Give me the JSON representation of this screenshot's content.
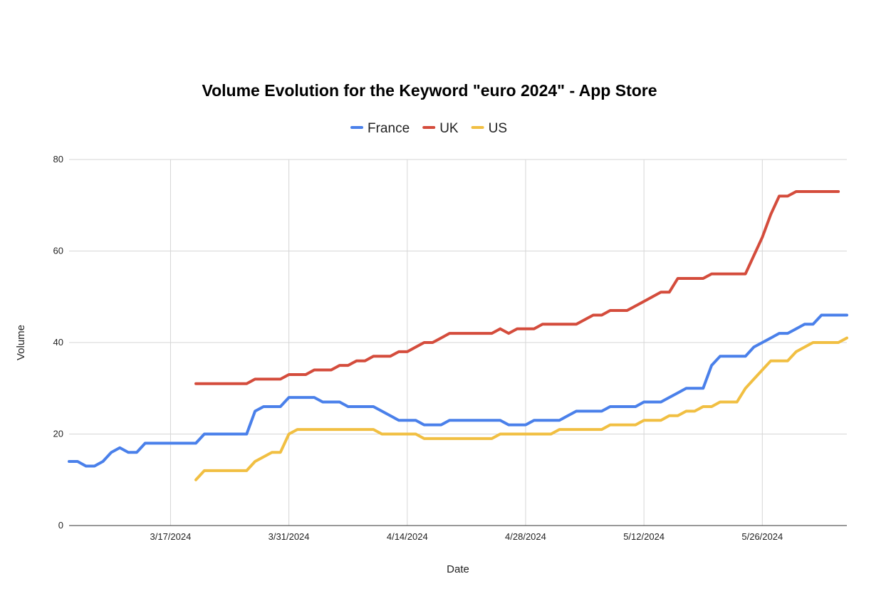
{
  "chart_data": {
    "type": "line",
    "title": "Volume Evolution for the Keyword \"euro 2024\" - App Store",
    "xlabel": "Date",
    "ylabel": "Volume",
    "ylim": [
      0,
      80
    ],
    "yticks": [
      0,
      20,
      40,
      60,
      80
    ],
    "xlim": [
      "2024-03-05",
      "2024-06-05"
    ],
    "xticks": [
      {
        "date": "2024-03-17",
        "label": "3/17/2024"
      },
      {
        "date": "2024-03-31",
        "label": "3/31/2024"
      },
      {
        "date": "2024-04-14",
        "label": "4/14/2024"
      },
      {
        "date": "2024-04-28",
        "label": "4/28/2024"
      },
      {
        "date": "2024-05-12",
        "label": "5/12/2024"
      },
      {
        "date": "2024-05-26",
        "label": "5/26/2024"
      }
    ],
    "grid": true,
    "legend_position": "top",
    "series": [
      {
        "name": "France",
        "color": "#4a80ea",
        "points": [
          [
            "2024-03-05",
            14
          ],
          [
            "2024-03-06",
            14
          ],
          [
            "2024-03-07",
            13
          ],
          [
            "2024-03-08",
            13
          ],
          [
            "2024-03-09",
            14
          ],
          [
            "2024-03-10",
            16
          ],
          [
            "2024-03-11",
            17
          ],
          [
            "2024-03-12",
            16
          ],
          [
            "2024-03-13",
            16
          ],
          [
            "2024-03-14",
            18
          ],
          [
            "2024-03-15",
            18
          ],
          [
            "2024-03-16",
            18
          ],
          [
            "2024-03-17",
            18
          ],
          [
            "2024-03-18",
            18
          ],
          [
            "2024-03-19",
            18
          ],
          [
            "2024-03-20",
            18
          ],
          [
            "2024-03-21",
            20
          ],
          [
            "2024-03-22",
            20
          ],
          [
            "2024-03-23",
            20
          ],
          [
            "2024-03-24",
            20
          ],
          [
            "2024-03-25",
            20
          ],
          [
            "2024-03-26",
            20
          ],
          [
            "2024-03-27",
            25
          ],
          [
            "2024-03-28",
            26
          ],
          [
            "2024-03-29",
            26
          ],
          [
            "2024-03-30",
            26
          ],
          [
            "2024-03-31",
            28
          ],
          [
            "2024-04-01",
            28
          ],
          [
            "2024-04-02",
            28
          ],
          [
            "2024-04-03",
            28
          ],
          [
            "2024-04-04",
            27
          ],
          [
            "2024-04-05",
            27
          ],
          [
            "2024-04-06",
            27
          ],
          [
            "2024-04-07",
            26
          ],
          [
            "2024-04-08",
            26
          ],
          [
            "2024-04-09",
            26
          ],
          [
            "2024-04-10",
            26
          ],
          [
            "2024-04-11",
            25
          ],
          [
            "2024-04-12",
            24
          ],
          [
            "2024-04-13",
            23
          ],
          [
            "2024-04-14",
            23
          ],
          [
            "2024-04-15",
            23
          ],
          [
            "2024-04-16",
            22
          ],
          [
            "2024-04-17",
            22
          ],
          [
            "2024-04-18",
            22
          ],
          [
            "2024-04-19",
            23
          ],
          [
            "2024-04-20",
            23
          ],
          [
            "2024-04-21",
            23
          ],
          [
            "2024-04-22",
            23
          ],
          [
            "2024-04-23",
            23
          ],
          [
            "2024-04-24",
            23
          ],
          [
            "2024-04-25",
            23
          ],
          [
            "2024-04-26",
            22
          ],
          [
            "2024-04-27",
            22
          ],
          [
            "2024-04-28",
            22
          ],
          [
            "2024-04-29",
            23
          ],
          [
            "2024-04-30",
            23
          ],
          [
            "2024-05-01",
            23
          ],
          [
            "2024-05-02",
            23
          ],
          [
            "2024-05-03",
            24
          ],
          [
            "2024-05-04",
            25
          ],
          [
            "2024-05-05",
            25
          ],
          [
            "2024-05-06",
            25
          ],
          [
            "2024-05-07",
            25
          ],
          [
            "2024-05-08",
            26
          ],
          [
            "2024-05-09",
            26
          ],
          [
            "2024-05-10",
            26
          ],
          [
            "2024-05-11",
            26
          ],
          [
            "2024-05-12",
            27
          ],
          [
            "2024-05-13",
            27
          ],
          [
            "2024-05-14",
            27
          ],
          [
            "2024-05-15",
            28
          ],
          [
            "2024-05-16",
            29
          ],
          [
            "2024-05-17",
            30
          ],
          [
            "2024-05-18",
            30
          ],
          [
            "2024-05-19",
            30
          ],
          [
            "2024-05-20",
            35
          ],
          [
            "2024-05-21",
            37
          ],
          [
            "2024-05-22",
            37
          ],
          [
            "2024-05-23",
            37
          ],
          [
            "2024-05-24",
            37
          ],
          [
            "2024-05-25",
            39
          ],
          [
            "2024-05-26",
            40
          ],
          [
            "2024-05-27",
            41
          ],
          [
            "2024-05-28",
            42
          ],
          [
            "2024-05-29",
            42
          ],
          [
            "2024-05-30",
            43
          ],
          [
            "2024-05-31",
            44
          ],
          [
            "2024-06-01",
            44
          ],
          [
            "2024-06-02",
            46
          ],
          [
            "2024-06-03",
            46
          ],
          [
            "2024-06-04",
            46
          ],
          [
            "2024-06-05",
            46
          ]
        ]
      },
      {
        "name": "UK",
        "color": "#d44c3c",
        "points": [
          [
            "2024-03-20",
            31
          ],
          [
            "2024-03-21",
            31
          ],
          [
            "2024-03-22",
            31
          ],
          [
            "2024-03-23",
            31
          ],
          [
            "2024-03-24",
            31
          ],
          [
            "2024-03-25",
            31
          ],
          [
            "2024-03-26",
            31
          ],
          [
            "2024-03-27",
            32
          ],
          [
            "2024-03-28",
            32
          ],
          [
            "2024-03-29",
            32
          ],
          [
            "2024-03-30",
            32
          ],
          [
            "2024-03-31",
            33
          ],
          [
            "2024-04-01",
            33
          ],
          [
            "2024-04-02",
            33
          ],
          [
            "2024-04-03",
            34
          ],
          [
            "2024-04-04",
            34
          ],
          [
            "2024-04-05",
            34
          ],
          [
            "2024-04-06",
            35
          ],
          [
            "2024-04-07",
            35
          ],
          [
            "2024-04-08",
            36
          ],
          [
            "2024-04-09",
            36
          ],
          [
            "2024-04-10",
            37
          ],
          [
            "2024-04-11",
            37
          ],
          [
            "2024-04-12",
            37
          ],
          [
            "2024-04-13",
            38
          ],
          [
            "2024-04-14",
            38
          ],
          [
            "2024-04-15",
            39
          ],
          [
            "2024-04-16",
            40
          ],
          [
            "2024-04-17",
            40
          ],
          [
            "2024-04-18",
            41
          ],
          [
            "2024-04-19",
            42
          ],
          [
            "2024-04-20",
            42
          ],
          [
            "2024-04-21",
            42
          ],
          [
            "2024-04-22",
            42
          ],
          [
            "2024-04-23",
            42
          ],
          [
            "2024-04-24",
            42
          ],
          [
            "2024-04-25",
            43
          ],
          [
            "2024-04-26",
            42
          ],
          [
            "2024-04-27",
            43
          ],
          [
            "2024-04-28",
            43
          ],
          [
            "2024-04-29",
            43
          ],
          [
            "2024-04-30",
            44
          ],
          [
            "2024-05-01",
            44
          ],
          [
            "2024-05-02",
            44
          ],
          [
            "2024-05-03",
            44
          ],
          [
            "2024-05-04",
            44
          ],
          [
            "2024-05-05",
            45
          ],
          [
            "2024-05-06",
            46
          ],
          [
            "2024-05-07",
            46
          ],
          [
            "2024-05-08",
            47
          ],
          [
            "2024-05-09",
            47
          ],
          [
            "2024-05-10",
            47
          ],
          [
            "2024-05-11",
            48
          ],
          [
            "2024-05-12",
            49
          ],
          [
            "2024-05-13",
            50
          ],
          [
            "2024-05-14",
            51
          ],
          [
            "2024-05-15",
            51
          ],
          [
            "2024-05-16",
            54
          ],
          [
            "2024-05-17",
            54
          ],
          [
            "2024-05-18",
            54
          ],
          [
            "2024-05-19",
            54
          ],
          [
            "2024-05-20",
            55
          ],
          [
            "2024-05-21",
            55
          ],
          [
            "2024-05-22",
            55
          ],
          [
            "2024-05-23",
            55
          ],
          [
            "2024-05-24",
            55
          ],
          [
            "2024-05-25",
            59
          ],
          [
            "2024-05-26",
            63
          ],
          [
            "2024-05-27",
            68
          ],
          [
            "2024-05-28",
            72
          ],
          [
            "2024-05-29",
            72
          ],
          [
            "2024-05-30",
            73
          ],
          [
            "2024-05-31",
            73
          ],
          [
            "2024-06-01",
            73
          ],
          [
            "2024-06-02",
            73
          ],
          [
            "2024-06-03",
            73
          ],
          [
            "2024-06-04",
            73
          ]
        ]
      },
      {
        "name": "US",
        "color": "#f1bf42",
        "points": [
          [
            "2024-03-20",
            10
          ],
          [
            "2024-03-21",
            12
          ],
          [
            "2024-03-22",
            12
          ],
          [
            "2024-03-23",
            12
          ],
          [
            "2024-03-24",
            12
          ],
          [
            "2024-03-25",
            12
          ],
          [
            "2024-03-26",
            12
          ],
          [
            "2024-03-27",
            14
          ],
          [
            "2024-03-28",
            15
          ],
          [
            "2024-03-29",
            16
          ],
          [
            "2024-03-30",
            16
          ],
          [
            "2024-03-31",
            20
          ],
          [
            "2024-04-01",
            21
          ],
          [
            "2024-04-02",
            21
          ],
          [
            "2024-04-03",
            21
          ],
          [
            "2024-04-04",
            21
          ],
          [
            "2024-04-05",
            21
          ],
          [
            "2024-04-06",
            21
          ],
          [
            "2024-04-07",
            21
          ],
          [
            "2024-04-08",
            21
          ],
          [
            "2024-04-09",
            21
          ],
          [
            "2024-04-10",
            21
          ],
          [
            "2024-04-11",
            20
          ],
          [
            "2024-04-12",
            20
          ],
          [
            "2024-04-13",
            20
          ],
          [
            "2024-04-14",
            20
          ],
          [
            "2024-04-15",
            20
          ],
          [
            "2024-04-16",
            19
          ],
          [
            "2024-04-17",
            19
          ],
          [
            "2024-04-18",
            19
          ],
          [
            "2024-04-19",
            19
          ],
          [
            "2024-04-20",
            19
          ],
          [
            "2024-04-21",
            19
          ],
          [
            "2024-04-22",
            19
          ],
          [
            "2024-04-23",
            19
          ],
          [
            "2024-04-24",
            19
          ],
          [
            "2024-04-25",
            20
          ],
          [
            "2024-04-26",
            20
          ],
          [
            "2024-04-27",
            20
          ],
          [
            "2024-04-28",
            20
          ],
          [
            "2024-04-29",
            20
          ],
          [
            "2024-04-30",
            20
          ],
          [
            "2024-05-01",
            20
          ],
          [
            "2024-05-02",
            21
          ],
          [
            "2024-05-03",
            21
          ],
          [
            "2024-05-04",
            21
          ],
          [
            "2024-05-05",
            21
          ],
          [
            "2024-05-06",
            21
          ],
          [
            "2024-05-07",
            21
          ],
          [
            "2024-05-08",
            22
          ],
          [
            "2024-05-09",
            22
          ],
          [
            "2024-05-10",
            22
          ],
          [
            "2024-05-11",
            22
          ],
          [
            "2024-05-12",
            23
          ],
          [
            "2024-05-13",
            23
          ],
          [
            "2024-05-14",
            23
          ],
          [
            "2024-05-15",
            24
          ],
          [
            "2024-05-16",
            24
          ],
          [
            "2024-05-17",
            25
          ],
          [
            "2024-05-18",
            25
          ],
          [
            "2024-05-19",
            26
          ],
          [
            "2024-05-20",
            26
          ],
          [
            "2024-05-21",
            27
          ],
          [
            "2024-05-22",
            27
          ],
          [
            "2024-05-23",
            27
          ],
          [
            "2024-05-24",
            30
          ],
          [
            "2024-05-25",
            32
          ],
          [
            "2024-05-26",
            34
          ],
          [
            "2024-05-27",
            36
          ],
          [
            "2024-05-28",
            36
          ],
          [
            "2024-05-29",
            36
          ],
          [
            "2024-05-30",
            38
          ],
          [
            "2024-05-31",
            39
          ],
          [
            "2024-06-01",
            40
          ],
          [
            "2024-06-02",
            40
          ],
          [
            "2024-06-03",
            40
          ],
          [
            "2024-06-04",
            40
          ],
          [
            "2024-06-05",
            41
          ]
        ]
      }
    ]
  }
}
